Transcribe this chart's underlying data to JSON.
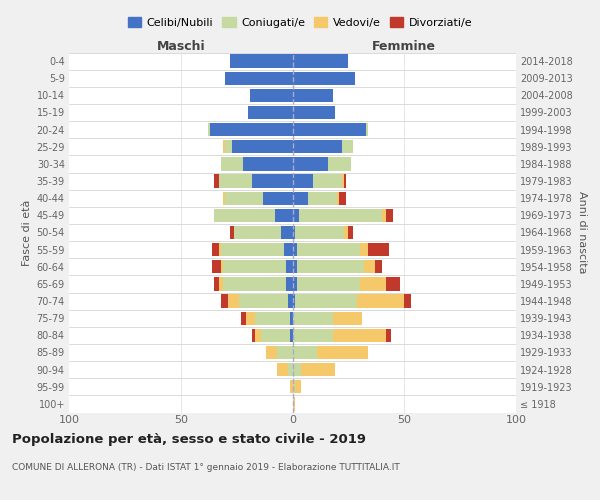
{
  "age_groups": [
    "100+",
    "95-99",
    "90-94",
    "85-89",
    "80-84",
    "75-79",
    "70-74",
    "65-69",
    "60-64",
    "55-59",
    "50-54",
    "45-49",
    "40-44",
    "35-39",
    "30-34",
    "25-29",
    "20-24",
    "15-19",
    "10-14",
    "5-9",
    "0-4"
  ],
  "birth_years": [
    "≤ 1918",
    "1919-1923",
    "1924-1928",
    "1929-1933",
    "1934-1938",
    "1939-1943",
    "1944-1948",
    "1949-1953",
    "1954-1958",
    "1959-1963",
    "1964-1968",
    "1969-1973",
    "1974-1978",
    "1979-1983",
    "1984-1988",
    "1989-1993",
    "1994-1998",
    "1999-2003",
    "2004-2008",
    "2009-2013",
    "2014-2018"
  ],
  "colors": {
    "celibe": "#4472C4",
    "coniugato": "#c5d9a0",
    "vedovo": "#f5c96a",
    "divorziato": "#c0392b"
  },
  "males": {
    "celibe": [
      0,
      0,
      0,
      0,
      1,
      1,
      2,
      3,
      3,
      4,
      5,
      8,
      13,
      18,
      22,
      27,
      37,
      20,
      19,
      30,
      28
    ],
    "coniugato": [
      0,
      0,
      2,
      7,
      13,
      16,
      22,
      28,
      28,
      28,
      21,
      27,
      17,
      15,
      10,
      3,
      1,
      0,
      0,
      0,
      0
    ],
    "vedovo": [
      0,
      1,
      5,
      5,
      3,
      4,
      5,
      2,
      1,
      1,
      0,
      0,
      1,
      0,
      0,
      1,
      0,
      0,
      0,
      0,
      0
    ],
    "divorziato": [
      0,
      0,
      0,
      0,
      1,
      2,
      3,
      2,
      4,
      3,
      2,
      0,
      0,
      2,
      0,
      0,
      0,
      0,
      0,
      0,
      0
    ]
  },
  "females": {
    "nubile": [
      0,
      0,
      0,
      0,
      0,
      0,
      1,
      2,
      2,
      2,
      1,
      3,
      7,
      9,
      16,
      22,
      33,
      19,
      18,
      28,
      25
    ],
    "coniugata": [
      0,
      1,
      4,
      11,
      18,
      18,
      28,
      28,
      30,
      28,
      22,
      37,
      13,
      13,
      10,
      5,
      1,
      0,
      0,
      0,
      0
    ],
    "vedova": [
      1,
      3,
      15,
      23,
      24,
      13,
      21,
      12,
      5,
      4,
      2,
      2,
      1,
      1,
      0,
      0,
      0,
      0,
      0,
      0,
      0
    ],
    "divorziata": [
      0,
      0,
      0,
      0,
      2,
      0,
      3,
      6,
      3,
      9,
      2,
      3,
      3,
      1,
      0,
      0,
      0,
      0,
      0,
      0,
      0
    ]
  },
  "xlim": 100,
  "title": "Popolazione per età, sesso e stato civile - 2019",
  "subtitle": "COMUNE DI ALLERONA (TR) - Dati ISTAT 1° gennaio 2019 - Elaborazione TUTTITALIA.IT",
  "xlabel_left": "Maschi",
  "xlabel_right": "Femmine",
  "ylabel_left": "Fasce di età",
  "ylabel_right": "Anni di nascita",
  "legend_labels": [
    "Celibi/Nubili",
    "Coniugati/e",
    "Vedovi/e",
    "Divorziati/e"
  ],
  "bg_color": "#f0f0f0",
  "plot_bg": "#ffffff"
}
